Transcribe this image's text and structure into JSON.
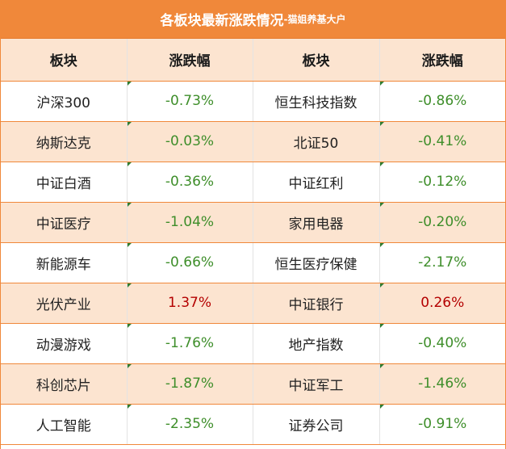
{
  "title": {
    "main": "各板块最新涨跌情况",
    "sub": "-猫姐养基大户"
  },
  "headers": [
    "板块",
    "涨跌幅",
    "板块",
    "涨跌幅"
  ],
  "rows": [
    {
      "left_name": "沪深300",
      "left_change": "-0.73%",
      "left_dir": "down",
      "right_name": "恒生科技指数",
      "right_change": "-0.86%",
      "right_dir": "down"
    },
    {
      "left_name": "纳斯达克",
      "left_change": "-0.03%",
      "left_dir": "down",
      "right_name": "北证50",
      "right_change": "-0.41%",
      "right_dir": "down"
    },
    {
      "left_name": "中证白酒",
      "left_change": "-0.36%",
      "left_dir": "down",
      "right_name": "中证红利",
      "right_change": "-0.12%",
      "right_dir": "down"
    },
    {
      "left_name": "中证医疗",
      "left_change": "-1.04%",
      "left_dir": "down",
      "right_name": "家用电器",
      "right_change": "-0.20%",
      "right_dir": "down"
    },
    {
      "left_name": "新能源车",
      "left_change": "-0.66%",
      "left_dir": "down",
      "right_name": "恒生医疗保健",
      "right_change": "-2.17%",
      "right_dir": "down"
    },
    {
      "left_name": "光伏产业",
      "left_change": "1.37%",
      "left_dir": "up",
      "right_name": "中证银行",
      "right_change": "0.26%",
      "right_dir": "up"
    },
    {
      "left_name": "动漫游戏",
      "left_change": "-1.76%",
      "left_dir": "down",
      "right_name": "地产指数",
      "right_change": "-0.40%",
      "right_dir": "down"
    },
    {
      "left_name": "科创芯片",
      "left_change": "-1.87%",
      "left_dir": "down",
      "right_name": "中证军工",
      "right_change": "-1.46%",
      "right_dir": "down"
    },
    {
      "left_name": "人工智能",
      "left_change": "-2.35%",
      "left_dir": "down",
      "right_name": "证券公司",
      "right_change": "-0.91%",
      "right_dir": "down"
    }
  ],
  "colors": {
    "accent_orange": "#f0883a",
    "row_tint": "#fce4d0",
    "down_green": "#3e8e2a",
    "up_red": "#b40000"
  }
}
